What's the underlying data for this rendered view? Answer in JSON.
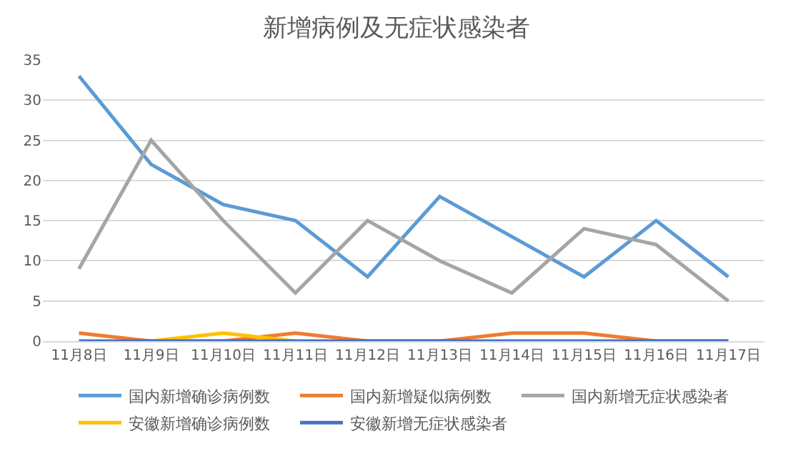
{
  "chart_data": {
    "type": "line",
    "title": "新增病例及无症状感染者",
    "categories": [
      "11月8日",
      "11月9日",
      "11月10日",
      "11月11日",
      "11月12日",
      "11月13日",
      "11月14日",
      "11月15日",
      "11月16日",
      "11月17日"
    ],
    "series": [
      {
        "name": "国内新增确诊病例数",
        "color": "#5b9bd5",
        "values": [
          33,
          22,
          17,
          15,
          8,
          18,
          13,
          8,
          15,
          8
        ]
      },
      {
        "name": "国内新增疑似病例数",
        "color": "#ed7d31",
        "values": [
          1,
          0,
          0,
          1,
          0,
          0,
          1,
          1,
          0,
          0
        ]
      },
      {
        "name": "国内新增无症状感染者",
        "color": "#a5a5a5",
        "values": [
          9,
          25,
          15,
          6,
          15,
          10,
          6,
          14,
          12,
          5
        ]
      },
      {
        "name": "安徽新增确诊病例数",
        "color": "#ffc000",
        "values": [
          null,
          0,
          1,
          0,
          null,
          null,
          null,
          null,
          null,
          null
        ]
      },
      {
        "name": "安徽新增无症状感染者",
        "color": "#4472c4",
        "values": [
          0,
          0,
          0,
          0,
          0,
          0,
          0,
          0,
          0,
          0
        ]
      }
    ],
    "ylim": [
      0,
      35
    ],
    "yticks": [
      0,
      5,
      10,
      15,
      20,
      25,
      30,
      35
    ],
    "grid": "y",
    "legend": "bottom",
    "marker": "none",
    "line_style": "solid"
  }
}
